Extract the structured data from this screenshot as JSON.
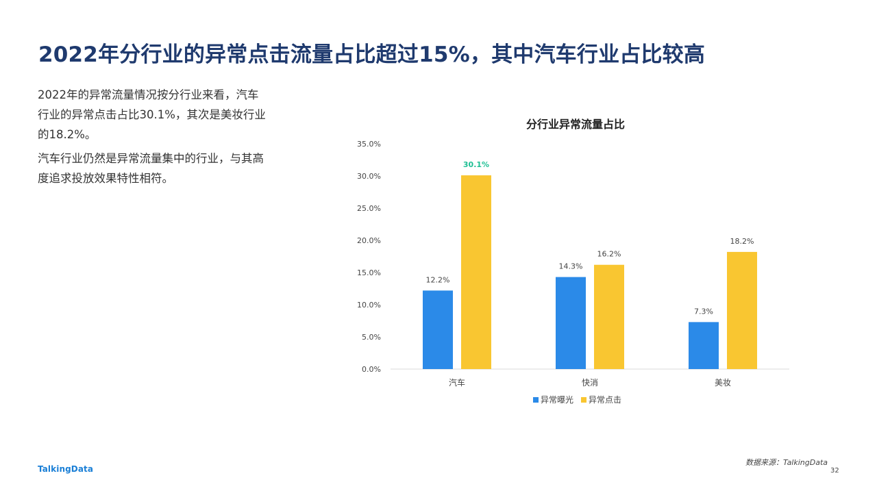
{
  "page": {
    "title": "2022年分行业的异常点击流量占比超过15%，其中汽车行业占比较高",
    "paragraphs": [
      "2022年的异常流量情况按分行业来看，汽车行业的异常点击占比30.1%，其次是美妆行业的18.2%。",
      "汽车行业仍然是异常流量集中的行业，与其高度追求投放效果特性相符。"
    ],
    "logo": "TalkingData",
    "source": "数据来源：TalkingData",
    "page_number": "32"
  },
  "colors": {
    "series_exposure": "#2b8ae8",
    "series_click": "#f9c631",
    "highlight_label": "#1fbf94",
    "axis_text": "#444444",
    "baseline": "#d9d9d9"
  },
  "chart_data": {
    "type": "bar",
    "title": "分行业异常流量占比",
    "categories": [
      "汽车",
      "快消",
      "美妆"
    ],
    "series": [
      {
        "name": "异常曝光",
        "values": [
          12.2,
          14.3,
          7.3
        ],
        "labels": [
          "12.2%",
          "14.3%",
          "7.3%"
        ]
      },
      {
        "name": "异常点击",
        "values": [
          30.1,
          16.2,
          18.2
        ],
        "labels": [
          "30.1%",
          "16.2%",
          "18.2%"
        ]
      }
    ],
    "highlight": {
      "series": 1,
      "index": 0
    },
    "ylim": [
      0,
      35
    ],
    "yticks": [
      "0.0%",
      "5.0%",
      "10.0%",
      "15.0%",
      "20.0%",
      "25.0%",
      "30.0%",
      "35.0%"
    ],
    "grid": false,
    "legend": "bottom"
  }
}
